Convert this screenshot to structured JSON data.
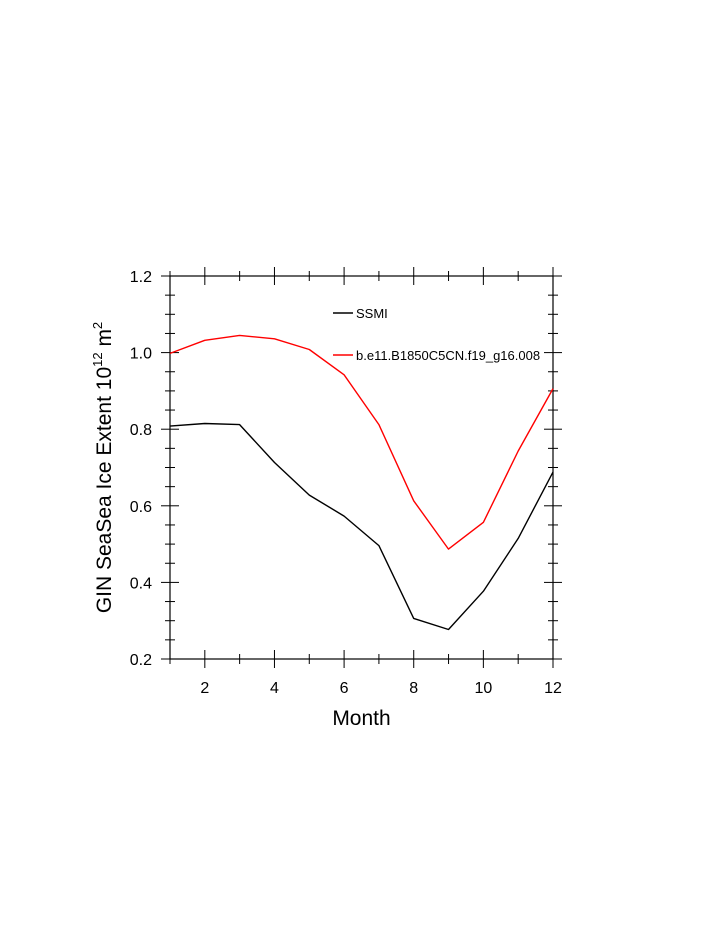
{
  "chart_data": {
    "type": "line",
    "title": "",
    "xlabel": "Month",
    "ylabel_parts": {
      "text": "GIN SeaSea Ice Extent 10",
      "exp1": "12",
      "unit": " m",
      "exp2": "2"
    },
    "x": [
      1,
      2,
      3,
      4,
      5,
      6,
      7,
      8,
      9,
      10,
      11,
      12
    ],
    "xlim": [
      1,
      12
    ],
    "ylim": [
      0.2,
      1.2
    ],
    "xticks": [
      2,
      4,
      6,
      8,
      10,
      12
    ],
    "xtick_labels": [
      "2",
      "4",
      "6",
      "8",
      "10",
      "12"
    ],
    "yticks": [
      0.2,
      0.4,
      0.6,
      0.8,
      1.0,
      1.2
    ],
    "ytick_labels": [
      "0.2",
      "0.4",
      "0.6",
      "0.8",
      "1.0",
      "1.2"
    ],
    "grid": false,
    "legend_position": "top-center",
    "series": [
      {
        "name": "SSMI",
        "color": "#000000",
        "values": [
          0.808,
          0.815,
          0.812,
          0.713,
          0.628,
          0.573,
          0.496,
          0.306,
          0.277,
          0.377,
          0.515,
          0.688
        ]
      },
      {
        "name": "b.e11.B1850C5CN.f19_g16.008",
        "color": "#ff0000",
        "values": [
          0.998,
          1.032,
          1.045,
          1.036,
          1.008,
          0.942,
          0.812,
          0.613,
          0.487,
          0.557,
          0.743,
          0.906
        ]
      }
    ]
  }
}
